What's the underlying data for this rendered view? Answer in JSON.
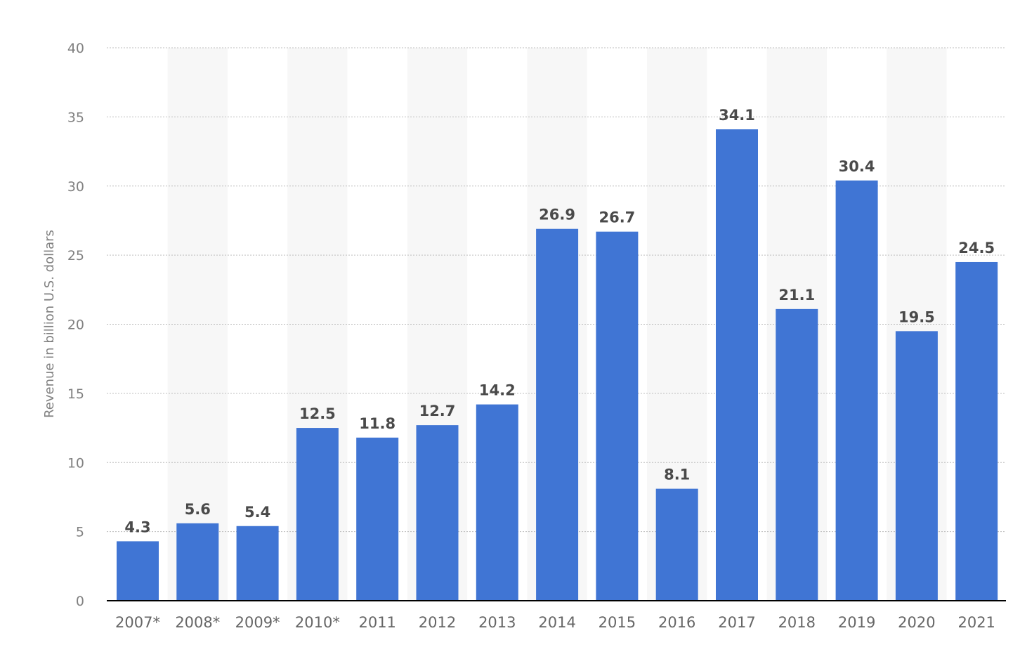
{
  "chart_data": {
    "type": "bar",
    "title": "",
    "xlabel": "",
    "ylabel": "Revenue in billion U.S. dollars",
    "categories": [
      "2007*",
      "2008*",
      "2009*",
      "2010*",
      "2011",
      "2012",
      "2013",
      "2014",
      "2015",
      "2016",
      "2017",
      "2018",
      "2019",
      "2020",
      "2021"
    ],
    "values": [
      4.3,
      5.6,
      5.4,
      12.5,
      11.8,
      12.7,
      14.2,
      26.9,
      26.7,
      8.1,
      34.1,
      21.1,
      30.4,
      19.5,
      24.5
    ],
    "value_labels": [
      "4.3",
      "5.6",
      "5.4",
      "12.5",
      "11.8",
      "12.7",
      "14.2",
      "26.9",
      "26.7",
      "8.1",
      "34.1",
      "21.1",
      "30.4",
      "19.5",
      "24.5"
    ],
    "ylim": [
      0,
      40
    ],
    "yticks": [
      0,
      5,
      10,
      15,
      20,
      25,
      30,
      35,
      40
    ],
    "grid": true,
    "legend": "none",
    "bar_color": "#4075d4",
    "band_color": "#f7f7f7"
  }
}
